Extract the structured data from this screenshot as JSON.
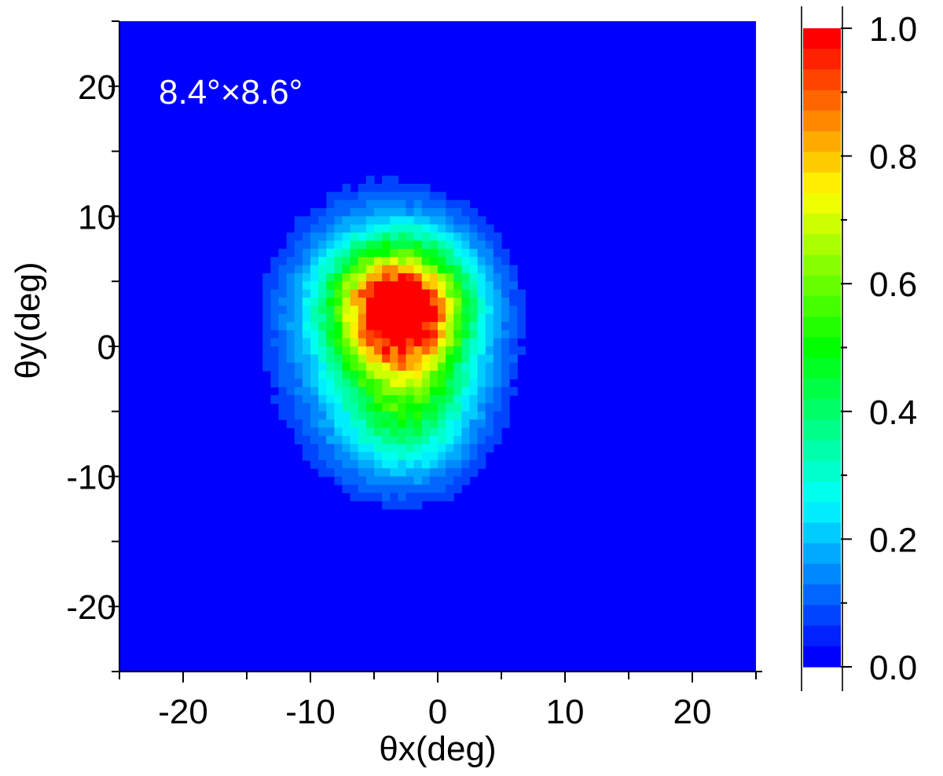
{
  "chart_data": {
    "type": "heatmap",
    "title": "",
    "xlabel": "θx(deg)",
    "ylabel": "θy(deg)",
    "xlim": [
      -25,
      25
    ],
    "ylim": [
      -25,
      25
    ],
    "x_ticks": [
      "-20",
      "-10",
      "0",
      "10",
      "20"
    ],
    "y_ticks": [
      "20",
      "10",
      "0",
      "-10",
      "-20"
    ],
    "annotation": "8.4°×8.6°",
    "colorbar": {
      "range": [
        0.0,
        1.0
      ],
      "ticks": [
        "1.0",
        "0.8",
        "0.6",
        "0.4",
        "0.2",
        "0.0"
      ],
      "colormap": "rainbow (blue → cyan → green → yellow → red)",
      "levels": 31
    },
    "peak": {
      "x": -3,
      "y": 3,
      "value": 1.0
    },
    "spot_size_deg": [
      8.4,
      8.6
    ],
    "grid": false
  }
}
